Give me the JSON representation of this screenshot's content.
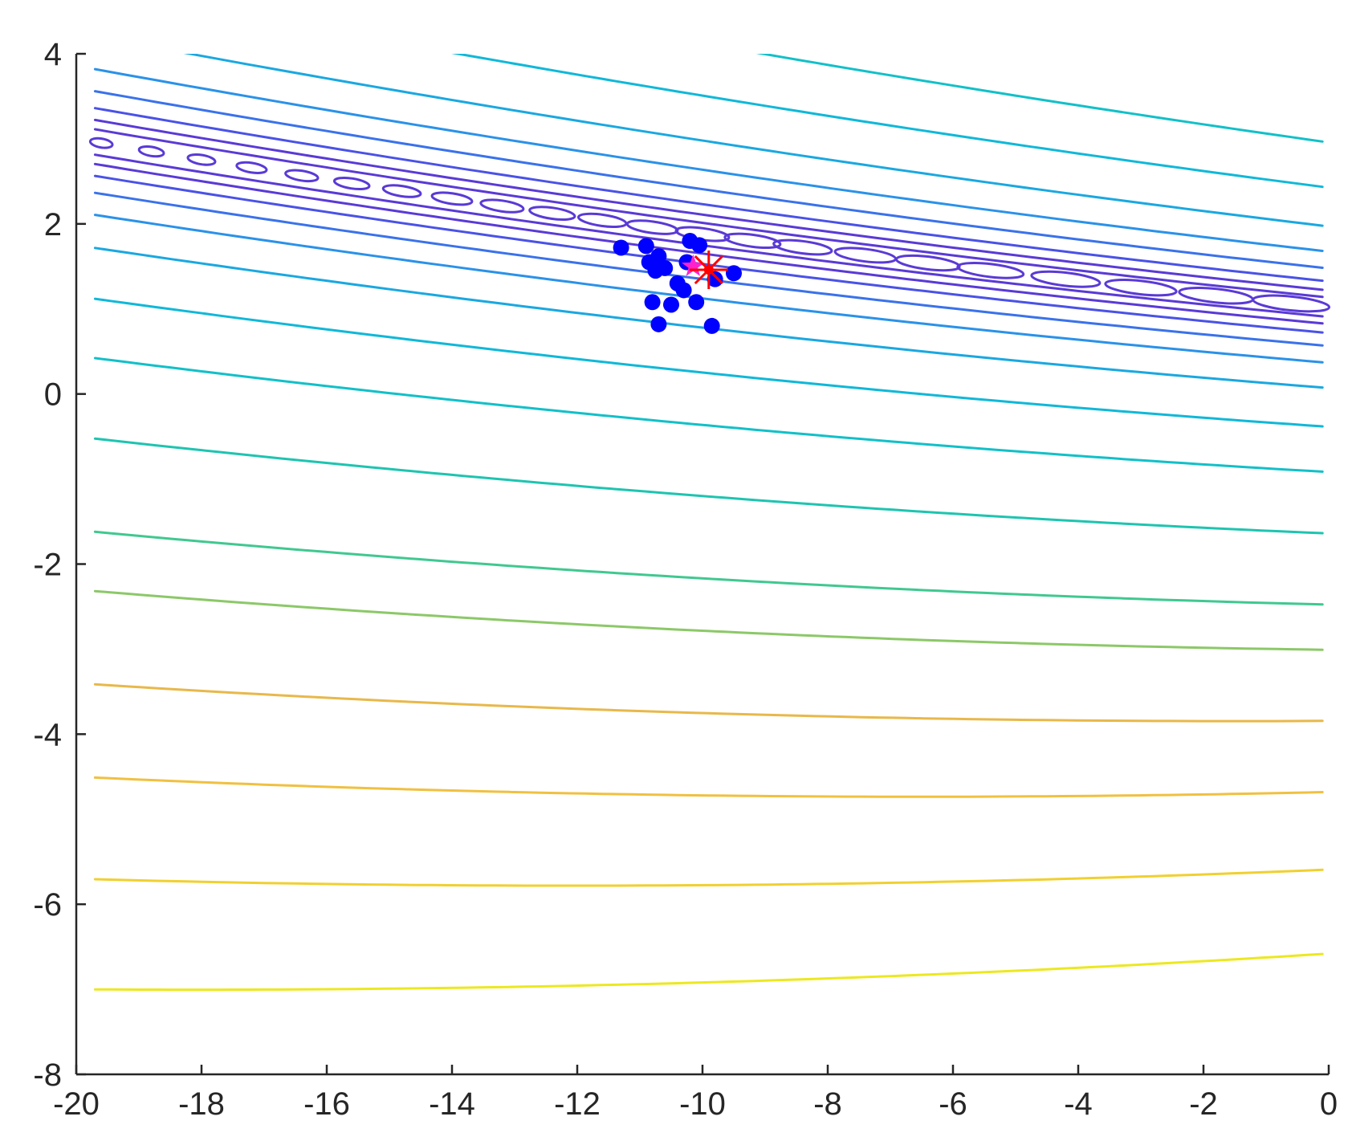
{
  "chart_data": {
    "type": "contour",
    "title": "",
    "xlabel": "",
    "ylabel": "",
    "xlim": [
      -20,
      0
    ],
    "ylim": [
      -8,
      4
    ],
    "grid": false,
    "legend": "none",
    "x_ticks": [
      -20,
      -18,
      -16,
      -14,
      -12,
      -10,
      -8,
      -6,
      -4,
      -2,
      0
    ],
    "x_tick_labels": [
      "-20",
      "-18",
      "-16",
      "-14",
      "-12",
      "-10",
      "-8",
      "-6",
      "-4",
      "-2",
      "0"
    ],
    "y_ticks": [
      -8,
      -6,
      -4,
      -2,
      0,
      2,
      4
    ],
    "y_tick_labels": [
      "-8",
      "-6",
      "-4",
      "-2",
      "0",
      "2",
      "4"
    ],
    "valley": {
      "center_at_x_-20": 3.0,
      "slope": -0.125,
      "curvature": 0.0013
    },
    "contour_offsets": [
      {
        "offset": 0.15,
        "color": "#5a3ad6"
      },
      {
        "offset": 0.26,
        "color": "#5a3ad6"
      },
      {
        "offset": 0.4,
        "color": "#4a52e6"
      },
      {
        "offset": 0.6,
        "color": "#3a72ea"
      },
      {
        "offset": 0.86,
        "color": "#2a92e8"
      },
      {
        "offset": 1.25,
        "color": "#1aa8e0"
      },
      {
        "offset": 1.85,
        "color": "#10b8d8"
      },
      {
        "offset": 2.55,
        "color": "#12c0c8"
      },
      {
        "offset": 3.5,
        "color": "#1ec4b0"
      },
      {
        "offset": 4.6,
        "color": "#40c890"
      },
      {
        "offset": 5.3,
        "color": "#8cc868"
      },
      {
        "offset": 6.4,
        "color": "#e8b84a"
      },
      {
        "offset": 7.5,
        "color": "#f0c040"
      },
      {
        "offset": 8.7,
        "color": "#f0d030"
      },
      {
        "offset": 10.0,
        "color": "#ece820"
      }
    ],
    "contour_offsets_above": [
      {
        "offset": 0.15,
        "color": "#5a3ad6"
      },
      {
        "offset": 0.26,
        "color": "#5a3ad6"
      },
      {
        "offset": 0.4,
        "color": "#4a52e6"
      },
      {
        "offset": 0.6,
        "color": "#3a72ea"
      },
      {
        "offset": 0.86,
        "color": "#2a92e8"
      },
      {
        "offset": 1.25,
        "color": "#1aa8e0"
      },
      {
        "offset": 1.85,
        "color": "#10b8d8"
      },
      {
        "offset": 2.55,
        "color": "#12c0c8"
      }
    ],
    "closed_loops_x": [
      -19.6,
      -18.8,
      -18.0,
      -17.2,
      -16.4,
      -15.6,
      -14.8,
      -14.0,
      -13.2,
      -12.4,
      -11.6,
      -10.8,
      -10.0,
      -9.2,
      -8.4,
      -7.4,
      -6.4,
      -5.4,
      -4.2,
      -3.0,
      -1.8,
      -0.6
    ],
    "points": [
      {
        "x": -11.3,
        "y": 1.72
      },
      {
        "x": -10.9,
        "y": 1.74
      },
      {
        "x": -10.85,
        "y": 1.55
      },
      {
        "x": -10.7,
        "y": 1.62
      },
      {
        "x": -10.75,
        "y": 1.45
      },
      {
        "x": -10.6,
        "y": 1.48
      },
      {
        "x": -10.4,
        "y": 1.3
      },
      {
        "x": -10.3,
        "y": 1.22
      },
      {
        "x": -10.8,
        "y": 1.08
      },
      {
        "x": -10.5,
        "y": 1.05
      },
      {
        "x": -10.1,
        "y": 1.08
      },
      {
        "x": -10.7,
        "y": 0.82
      },
      {
        "x": -9.85,
        "y": 0.8
      },
      {
        "x": -10.2,
        "y": 1.8
      },
      {
        "x": -10.05,
        "y": 1.75
      },
      {
        "x": -9.5,
        "y": 1.42
      },
      {
        "x": -9.8,
        "y": 1.35
      },
      {
        "x": -10.25,
        "y": 1.55
      }
    ],
    "point_color": "#0000ff",
    "best_point": {
      "x": -10.15,
      "y": 1.5,
      "color": "#ff22cc"
    },
    "optimum": {
      "x": -9.9,
      "y": 1.46,
      "color": "#ff0000"
    }
  }
}
